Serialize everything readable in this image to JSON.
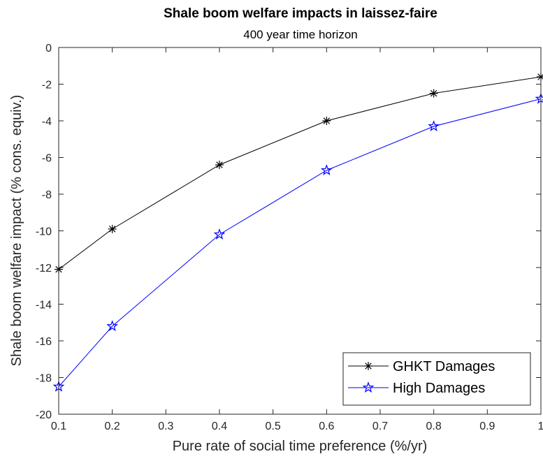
{
  "chart_data": {
    "type": "line",
    "title": "Shale boom welfare impacts in laissez-faire",
    "subtitle": "400 year time horizon",
    "xlabel": "Pure rate of social time preference (%/yr)",
    "ylabel": "Shale boom welfare impact (% cons. equiv.)",
    "xlim": [
      0.1,
      1
    ],
    "ylim": [
      -20,
      0
    ],
    "xticks": [
      "0.1",
      "0.2",
      "0.3",
      "0.4",
      "0.5",
      "0.6",
      "0.7",
      "0.8",
      "0.9",
      "1"
    ],
    "yticks": [
      "0",
      "-2",
      "-4",
      "-6",
      "-8",
      "-10",
      "-12",
      "-14",
      "-16",
      "-18",
      "-20"
    ],
    "x": [
      0.1,
      0.2,
      0.4,
      0.6,
      0.8,
      1.0
    ],
    "series": [
      {
        "name": "GHKT Damages",
        "values": [
          -12.1,
          -9.9,
          -6.4,
          -4.0,
          -2.5,
          -1.6
        ],
        "color": "#000000",
        "marker": "asterisk"
      },
      {
        "name": "High Damages",
        "values": [
          -18.5,
          -15.2,
          -10.2,
          -6.7,
          -4.3,
          -2.8
        ],
        "color": "#0000ff",
        "marker": "pentagram"
      }
    ],
    "grid": false,
    "legend_position": "bottom-right"
  }
}
